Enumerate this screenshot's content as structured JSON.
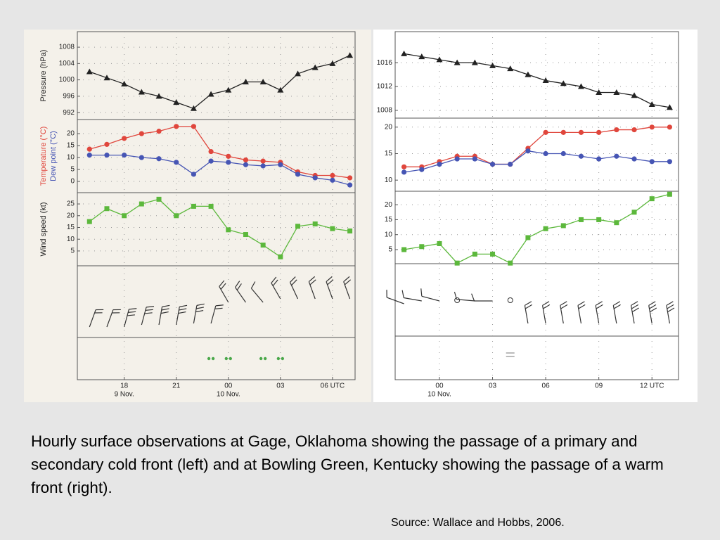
{
  "chart_data": [
    {
      "type": "line",
      "categories": [
        null,
        null,
        "18",
        null,
        null,
        "21",
        null,
        null,
        "00",
        null,
        null,
        "03",
        null,
        null,
        "06 UTC",
        null
      ],
      "subcategories": [
        null,
        null,
        "9 Nov.",
        null,
        null,
        null,
        null,
        null,
        "10 Nov.",
        null,
        null,
        null,
        null,
        null,
        null,
        null
      ],
      "grid": true,
      "panels": [
        {
          "ylabel": "Pressure (hPa)",
          "ylim": [
            990.3,
            1011.8
          ],
          "yticks": [
            992,
            996,
            1000,
            1004,
            1008
          ],
          "series": [
            {
              "color": "#222222",
              "marker": "triangle",
              "values": [
                1002,
                1000.5,
                999,
                997,
                996,
                994.5,
                993,
                996.5,
                997.5,
                999.5,
                999.5,
                997.5,
                1001.5,
                1003,
                1004,
                1006
              ]
            }
          ]
        },
        {
          "ylim": [
            -4.7,
            25.9
          ],
          "yticks": [
            0,
            5,
            10,
            15,
            20
          ],
          "series": [
            {
              "name": "Temperature (°C)",
              "color": "#e0463c",
              "marker": "circle",
              "values": [
                13.5,
                15.5,
                18,
                20,
                21,
                23,
                23,
                12.5,
                10.5,
                9,
                8.5,
                8,
                4,
                2.5,
                2.5,
                1.5
              ]
            },
            {
              "name": "Dew point (°C)",
              "color": "#4655b4",
              "marker": "circle",
              "values": [
                11,
                11,
                11,
                10,
                9.5,
                8,
                3,
                8.5,
                8,
                7,
                6.5,
                7,
                3,
                1.5,
                0.5,
                -1.5
              ]
            }
          ]
        },
        {
          "ylabel": "Wind speed (kt)",
          "ylim": [
            -1.3,
            29.8
          ],
          "yticks": [
            5,
            10,
            15,
            20,
            25
          ],
          "series": [
            {
              "color": "#5cb83c",
              "marker": "square",
              "values": [
                17.5,
                23,
                20,
                25,
                27,
                20,
                24,
                24,
                14,
                12,
                7.5,
                2.5,
                15.5,
                16.5,
                14.5,
                13.5
              ]
            }
          ]
        }
      ]
    },
    {
      "type": "line",
      "categories": [
        null,
        null,
        "00",
        null,
        null,
        "03",
        null,
        null,
        "06",
        null,
        null,
        "09",
        null,
        null,
        "12 UTC",
        null
      ],
      "subcategories": [
        null,
        null,
        "10 Nov.",
        null,
        null,
        null,
        null,
        null,
        null,
        null,
        null,
        null,
        null,
        null,
        null,
        null
      ],
      "grid": true,
      "panels": [
        {
          "ylim": [
            1006.7,
            1021.2
          ],
          "yticks": [
            1008,
            1012,
            1016
          ],
          "series": [
            {
              "color": "#222222",
              "marker": "triangle",
              "values": [
                1017.5,
                1017,
                1016.5,
                1016,
                1016,
                1015.5,
                1015,
                1014,
                1013,
                1012.5,
                1012,
                1011,
                1011,
                1010.5,
                1009,
                1008.5
              ]
            }
          ]
        },
        {
          "ylim": [
            7.9,
            21.7
          ],
          "yticks": [
            10,
            15,
            20
          ],
          "series": [
            {
              "color": "#e0463c",
              "marker": "circle",
              "values": [
                12.5,
                12.5,
                13.5,
                14.5,
                14.5,
                13,
                13,
                16,
                19,
                19,
                19,
                19,
                19.5,
                19.5,
                20,
                20
              ]
            },
            {
              "color": "#4655b4",
              "marker": "circle",
              "values": [
                11.5,
                12,
                13,
                14,
                14,
                13,
                13,
                15.5,
                15,
                15,
                14.5,
                14,
                14.5,
                14,
                13.5,
                13.5
              ]
            }
          ]
        },
        {
          "ylim": [
            0.3,
            24.5
          ],
          "yticks": [
            5,
            10,
            15,
            20
          ],
          "series": [
            {
              "color": "#5cb83c",
              "marker": "square",
              "values": [
                5,
                6,
                7,
                0.5,
                3.5,
                3.5,
                0.5,
                9,
                12,
                13,
                15,
                15,
                14,
                17.5,
                22,
                23.5
              ]
            }
          ]
        }
      ]
    }
  ],
  "caption": "Hourly surface observations at Gage, Oklahoma showing the passage of a primary and secondary cold front (left) and at Bowling Green, Kentucky showing the passage of a warm front (right).",
  "source": "Source: Wallace and Hobbs, 2006."
}
